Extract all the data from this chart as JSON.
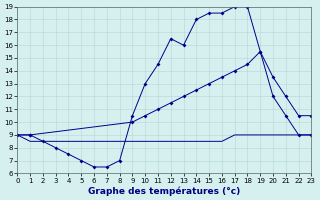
{
  "background_color": "#d6f0f0",
  "line_color": "#00008b",
  "grid_color": "#b8d4d4",
  "xlim": [
    0,
    23
  ],
  "ylim": [
    6,
    19
  ],
  "xticks": [
    0,
    1,
    2,
    3,
    4,
    5,
    6,
    7,
    8,
    9,
    10,
    11,
    12,
    13,
    14,
    15,
    16,
    17,
    18,
    19,
    20,
    21,
    22,
    23
  ],
  "yticks": [
    6,
    7,
    8,
    9,
    10,
    11,
    12,
    13,
    14,
    15,
    16,
    17,
    18,
    19
  ],
  "xlabel": "Graphe des températures (°c)",
  "line1_x": [
    0,
    1,
    2,
    3,
    4,
    5,
    6,
    7,
    8,
    9,
    10,
    11,
    12,
    13,
    14,
    15,
    16,
    17,
    18,
    19,
    20,
    21,
    22,
    23
  ],
  "line1_y": [
    9,
    9,
    8.5,
    8,
    7.5,
    7,
    6.5,
    6.5,
    7,
    10.5,
    13,
    14.5,
    16.5,
    16,
    18,
    18.5,
    18.5,
    19,
    19,
    15.5,
    12,
    10.5,
    9,
    9
  ],
  "line2_x": [
    0,
    1,
    9,
    10,
    11,
    12,
    13,
    14,
    15,
    16,
    17,
    18,
    19,
    20,
    21,
    22,
    23
  ],
  "line2_y": [
    9,
    9,
    10,
    10.5,
    11,
    11.5,
    12,
    12.5,
    13,
    13.5,
    14,
    14.5,
    15.5,
    13.5,
    12,
    10.5,
    10.5
  ],
  "line3_x": [
    0,
    1,
    2,
    3,
    4,
    5,
    6,
    7,
    8,
    9,
    10,
    11,
    12,
    13,
    14,
    15,
    16,
    17,
    18,
    19,
    20,
    21,
    22,
    23
  ],
  "line3_y": [
    9,
    8.5,
    8.5,
    8.5,
    8.5,
    8.5,
    8.5,
    8.5,
    8.5,
    8.5,
    8.5,
    8.5,
    8.5,
    8.5,
    8.5,
    8.5,
    8.5,
    9,
    9,
    9,
    9,
    9,
    9,
    9
  ],
  "marker_size": 2,
  "tick_fontsize": 5,
  "xlabel_fontsize": 6.5
}
